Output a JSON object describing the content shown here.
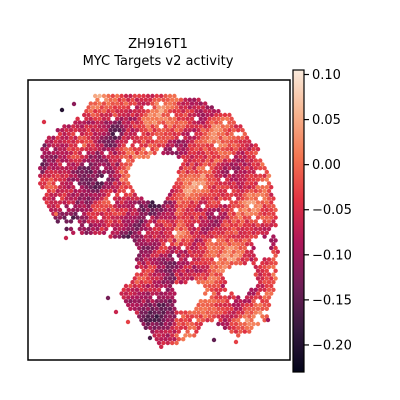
{
  "chart_data": {
    "type": "scatter",
    "subtype": "spatial-hexagon-spots",
    "title_lines": [
      "ZH916T1",
      "MYC Targets v2 activity"
    ],
    "xlabel": "",
    "ylabel": "",
    "axis_ticks_visible": false,
    "grid": false,
    "colormap": "rocket",
    "colorbar": {
      "position": "right",
      "vmin": -0.23,
      "vmax": 0.105,
      "ticks": [
        0.1,
        0.05,
        0.0,
        -0.05,
        -0.1,
        -0.15,
        -0.2
      ],
      "tick_labels": [
        "0.10",
        "0.05",
        "0.00",
        "−0.05",
        "−0.10",
        "−0.15",
        "−0.20"
      ],
      "stops": [
        "#03051a",
        "#35193e",
        "#701f57",
        "#ad1759",
        "#e13342",
        "#f37651",
        "#f6b48f",
        "#faebdd"
      ]
    }
  }
}
